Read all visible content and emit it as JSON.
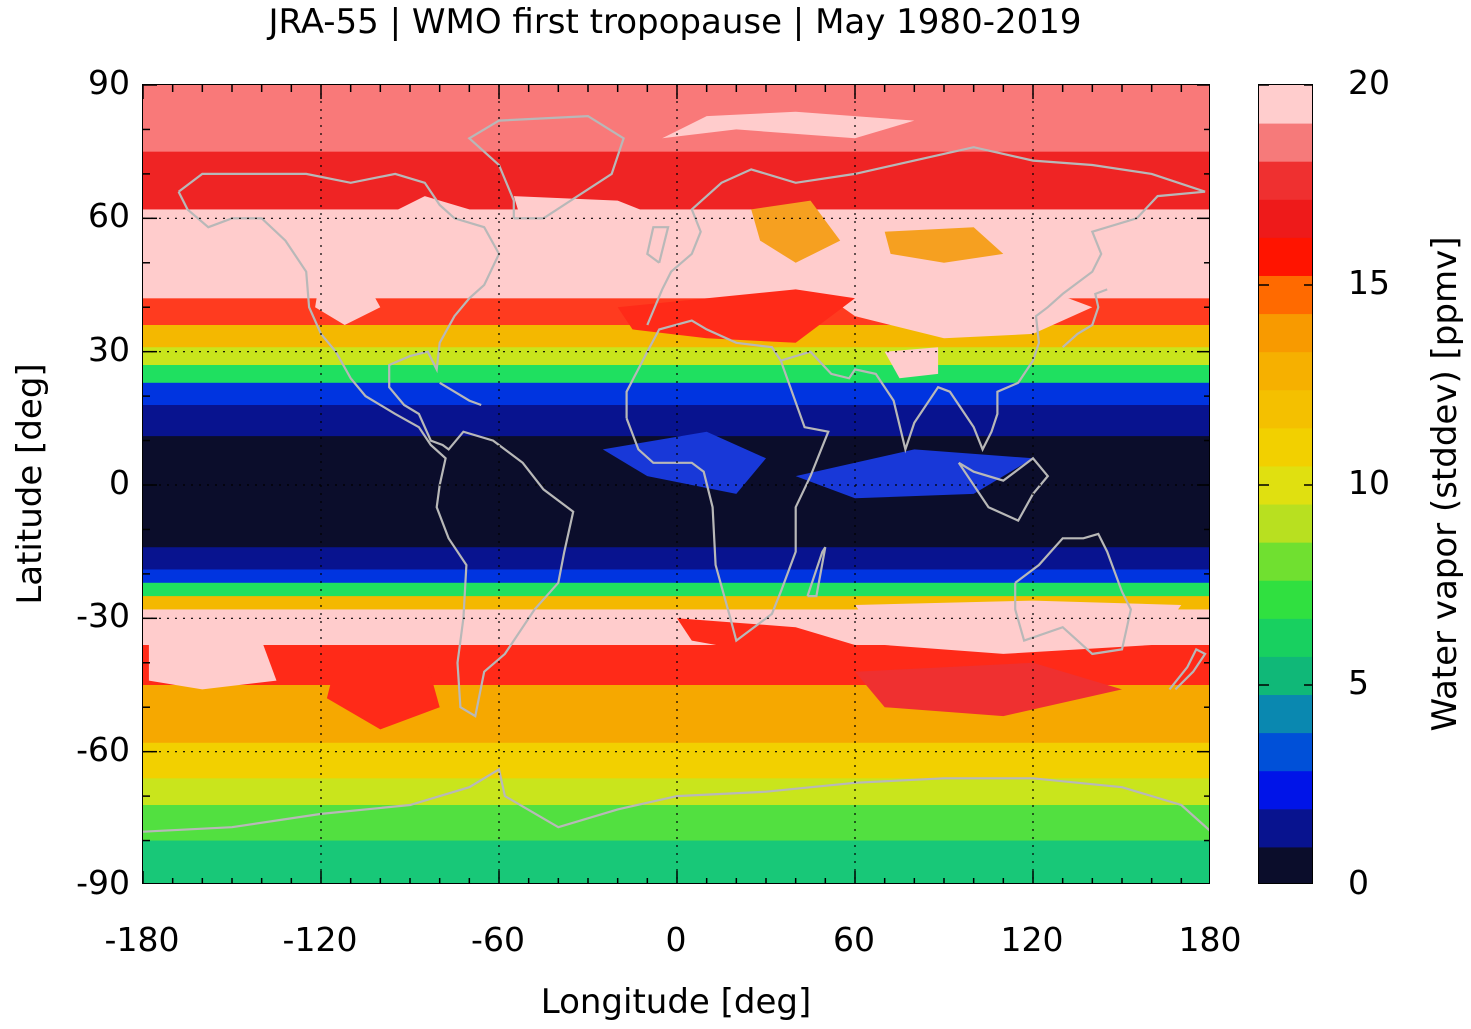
{
  "title": "JRA-55 | WMO first tropopause | May 1980-2019",
  "map": {
    "xlabel": "Longitude [deg]",
    "ylabel": "Latitude [deg]",
    "xlim": [
      -180,
      180
    ],
    "ylim": [
      -90,
      90
    ],
    "x_ticks": [
      "-180",
      "-120",
      "-60",
      "0",
      "60",
      "120",
      "180"
    ],
    "y_ticks": [
      "90",
      "60",
      "30",
      "0",
      "-30",
      "-60",
      "-90"
    ],
    "grid": "dotted",
    "coastlines_color": "#b8b8b8",
    "bands": [
      {
        "lat_from": 90,
        "lat_to": 75,
        "color": "#f97979"
      },
      {
        "lat_from": 75,
        "lat_to": 62,
        "color": "#ef2424"
      },
      {
        "lat_from": 62,
        "lat_to": 42,
        "color": "#ffcccc"
      },
      {
        "lat_from": 42,
        "lat_to": 36,
        "color": "#ff3b1f"
      },
      {
        "lat_from": 36,
        "lat_to": 31,
        "color": "#f4b800"
      },
      {
        "lat_from": 31,
        "lat_to": 27,
        "color": "#c9e51c"
      },
      {
        "lat_from": 27,
        "lat_to": 23,
        "color": "#1fe060"
      },
      {
        "lat_from": 23,
        "lat_to": 18,
        "color": "#0034e0"
      },
      {
        "lat_from": 18,
        "lat_to": 11,
        "color": "#08138f"
      },
      {
        "lat_from": 11,
        "lat_to": -14,
        "color": "#0b0d2b"
      },
      {
        "lat_from": -14,
        "lat_to": -19,
        "color": "#08138f"
      },
      {
        "lat_from": -19,
        "lat_to": -22,
        "color": "#0034e0"
      },
      {
        "lat_from": -22,
        "lat_to": -25,
        "color": "#1fe060"
      },
      {
        "lat_from": -25,
        "lat_to": -28,
        "color": "#f4b800"
      },
      {
        "lat_from": -28,
        "lat_to": -36,
        "color": "#ffcccc"
      },
      {
        "lat_from": -36,
        "lat_to": -45,
        "color": "#ff2a18"
      },
      {
        "lat_from": -45,
        "lat_to": -58,
        "color": "#f6a800"
      },
      {
        "lat_from": -58,
        "lat_to": -66,
        "color": "#f2d000"
      },
      {
        "lat_from": -66,
        "lat_to": -72,
        "color": "#c9e51c"
      },
      {
        "lat_from": -72,
        "lat_to": -80,
        "color": "#52e040"
      },
      {
        "lat_from": -80,
        "lat_to": -90,
        "color": "#18c878"
      }
    ]
  },
  "colorbar": {
    "label": "Water vapor (stddev) [ppmv]",
    "ticks": [
      "20",
      "15",
      "10",
      "5",
      "0"
    ],
    "range": [
      0,
      20
    ],
    "colors": [
      "#0b0d2b",
      "#08138f",
      "#0014e8",
      "#0050d8",
      "#0a88b0",
      "#10b878",
      "#18d060",
      "#30e040",
      "#70e030",
      "#b8e020",
      "#e0e010",
      "#f2d000",
      "#f4c000",
      "#f6b000",
      "#f89a00",
      "#ff6a00",
      "#ff1400",
      "#ee1a1a",
      "#ef3030",
      "#f67a7a",
      "#ffcdcd"
    ]
  }
}
